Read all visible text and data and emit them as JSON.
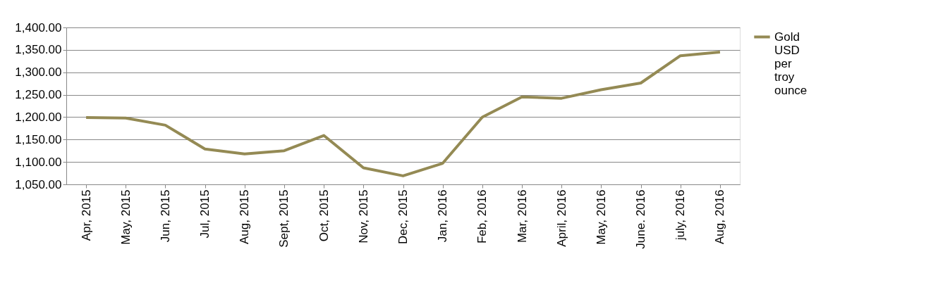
{
  "chart_data": {
    "type": "line",
    "categories": [
      "Apr, 2015",
      "May, 2015",
      "Jun, 2015",
      "Jul, 2015",
      "Aug, 2015",
      "Sept, 2015",
      "Oct, 2015",
      "Nov, 2015",
      "Dec, 2015",
      "Jan, 2016",
      "Feb, 2016",
      "Mar, 2016",
      "April, 2016",
      "May, 2016",
      "June. 2016",
      "july, 2016",
      "Aug, 2016"
    ],
    "series": [
      {
        "name": "Gold USD per troy ounce",
        "color": "#948a54",
        "values": [
          1199,
          1198,
          1182,
          1129,
          1118,
          1125,
          1159,
          1087,
          1069,
          1097,
          1200,
          1245,
          1242,
          1261,
          1276,
          1337,
          1345
        ]
      }
    ],
    "ylim": [
      1050,
      1400
    ],
    "yticks": [
      {
        "value": 1050,
        "label": "1,050.00"
      },
      {
        "value": 1100,
        "label": "1,100.00"
      },
      {
        "value": 1150,
        "label": "1,150.00"
      },
      {
        "value": 1200,
        "label": "1,200.00"
      },
      {
        "value": 1250,
        "label": "1,250.00"
      },
      {
        "value": 1300,
        "label": "1,300.00"
      },
      {
        "value": 1350,
        "label": "1,350.00"
      },
      {
        "value": 1400,
        "label": "1,400.00"
      }
    ],
    "grid": "y",
    "legend": "right",
    "marker": "none",
    "line_style": "solid"
  }
}
